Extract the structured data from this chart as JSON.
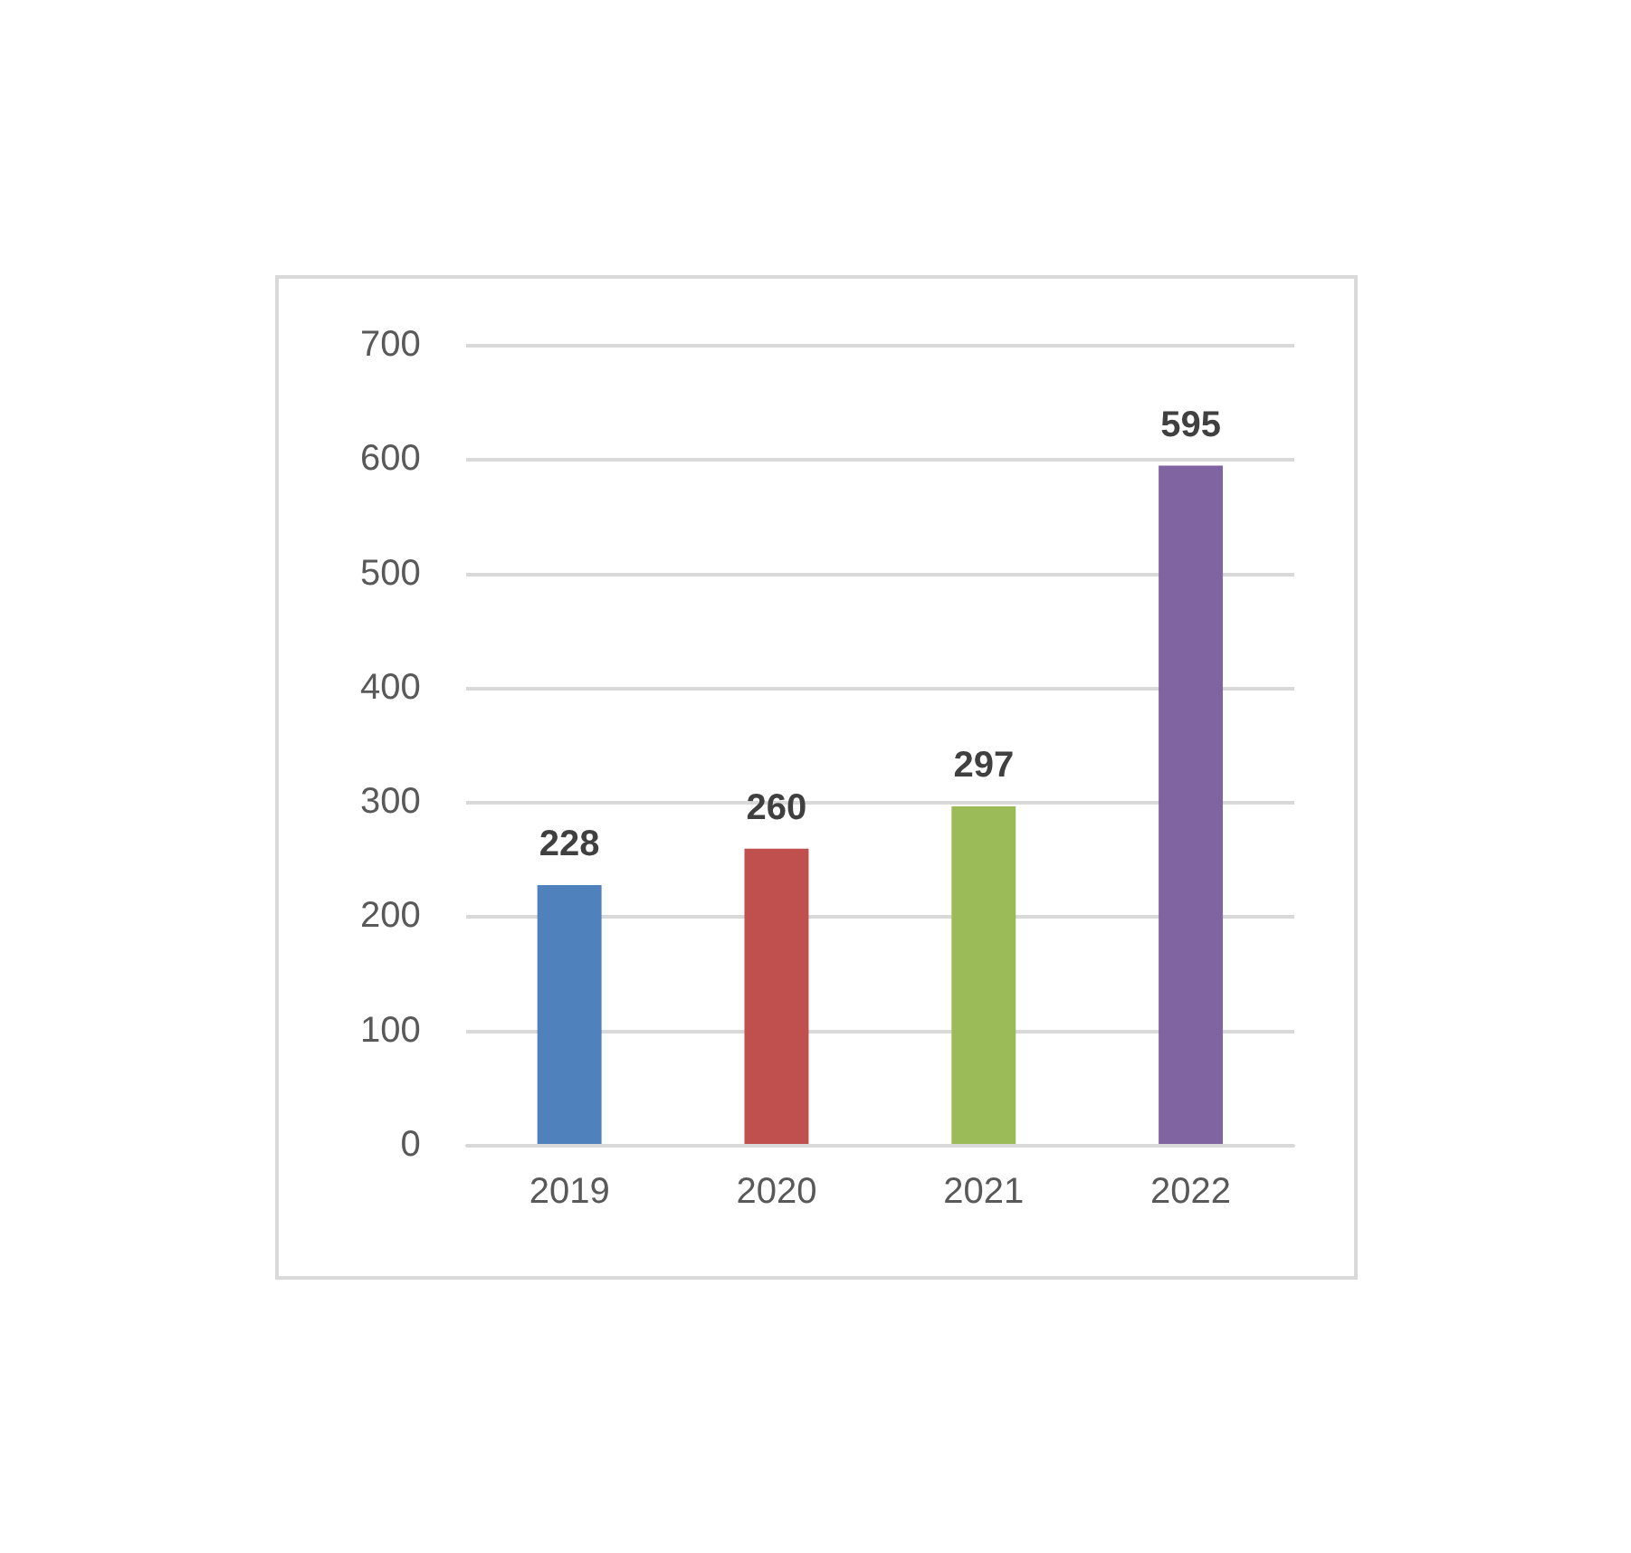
{
  "chart_data": {
    "type": "bar",
    "categories": [
      "2019",
      "2020",
      "2021",
      "2022"
    ],
    "values": [
      228,
      260,
      297,
      595
    ],
    "colors": [
      "#4f81bd",
      "#c0504d",
      "#9bbb59",
      "#8064a2"
    ],
    "ylim": [
      0,
      700
    ],
    "yticks": [
      0,
      100,
      200,
      300,
      400,
      500,
      600,
      700
    ],
    "grid": "y",
    "data_labels": true
  }
}
